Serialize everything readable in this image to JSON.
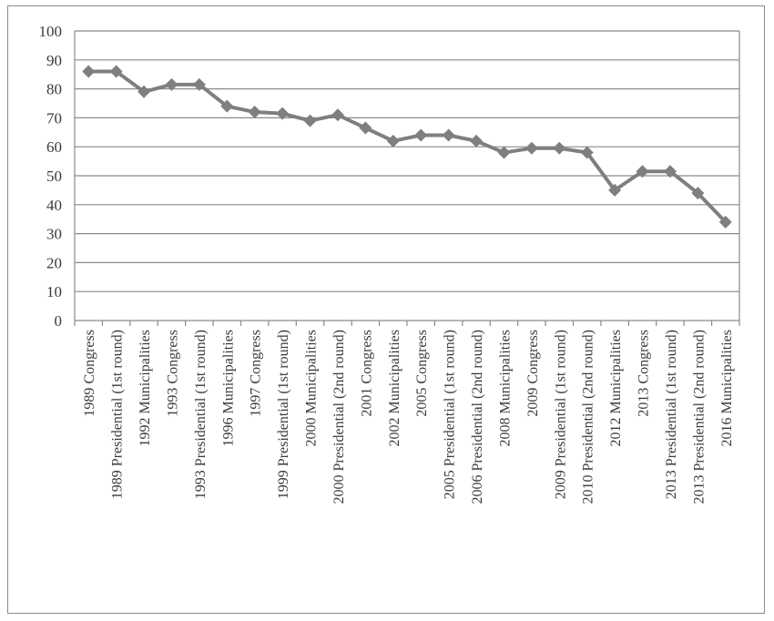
{
  "chart_data": {
    "type": "line",
    "title": "",
    "xlabel": "",
    "ylabel": "",
    "ylim": [
      0,
      100
    ],
    "yticks": [
      0,
      10,
      20,
      30,
      40,
      50,
      60,
      70,
      80,
      90,
      100
    ],
    "grid": true,
    "legend": "none",
    "line_color": "#7f7f7f",
    "categories": [
      "1989 Congress",
      "1989 Presidential (1st round)",
      "1992 Municipalities",
      "1993 Congress",
      "1993 Presidential (1st round)",
      "1996 Municipalities",
      "1997 Congress",
      "1999 Presidential (1st round)",
      "2000 Municipalities",
      "2000 Presidential (2nd round)",
      "2001 Congress",
      "2002 Municipalities",
      "2005 Congress",
      "2005 Presidential (1st round)",
      "2006 Presidential (2nd round)",
      "2008 Municipalities",
      "2009 Congress",
      "2009 Presidential (1st round)",
      "2010 Presidential (2nd round)",
      "2012 Municipalities",
      "2013 Congress",
      "2013 Presidential (1st round)",
      "2013 Presidential (2nd round)",
      "2016 Municipalities"
    ],
    "series": [
      {
        "values": [
          86,
          86,
          79,
          81.5,
          81.5,
          74,
          72,
          71.5,
          69,
          71,
          66.5,
          62,
          64,
          64,
          62,
          58,
          59.5,
          59.5,
          58,
          45,
          51.5,
          51.5,
          44,
          34
        ]
      }
    ]
  }
}
